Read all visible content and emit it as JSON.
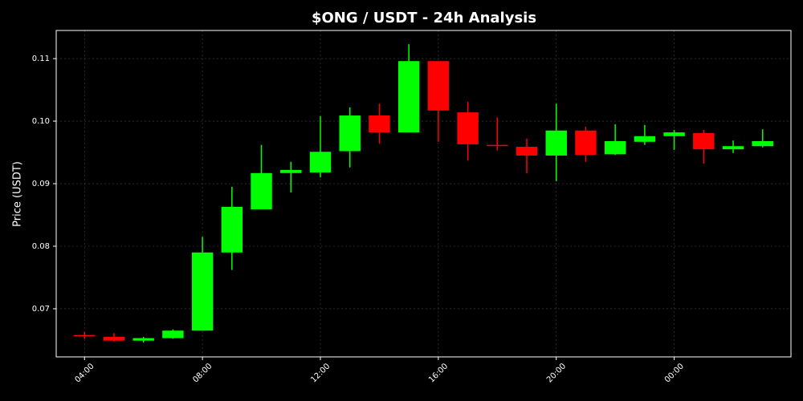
{
  "chart_data": {
    "type": "candlestick",
    "title": "$ONG / USDT - 24h Analysis",
    "y_label": "Price (USDT)",
    "categories": [
      "04:00",
      null,
      null,
      null,
      "08:00",
      null,
      null,
      null,
      "12:00",
      null,
      null,
      null,
      "16:00",
      null,
      null,
      null,
      "20:00",
      null,
      null,
      null,
      "00:00",
      null,
      null,
      null
    ],
    "open": [
      0.0658,
      0.0655,
      0.0649,
      0.0653,
      0.0665,
      0.079,
      0.0859,
      0.0917,
      0.0918,
      0.0952,
      0.1009,
      0.0982,
      0.1096,
      0.1014,
      0.0962,
      0.0959,
      0.0945,
      0.0985,
      0.0947,
      0.0967,
      0.0976,
      0.0981,
      0.0955,
      0.096
    ],
    "high": [
      0.0663,
      0.0661,
      0.0655,
      0.0667,
      0.0815,
      0.0895,
      0.0962,
      0.0935,
      0.1008,
      0.1022,
      0.1028,
      0.1123,
      0.1096,
      0.1031,
      0.1006,
      0.0972,
      0.1028,
      0.0991,
      0.0995,
      0.0994,
      0.0986,
      0.0986,
      0.0969,
      0.0987
    ],
    "low": [
      0.0652,
      0.0648,
      0.0646,
      0.0652,
      0.0665,
      0.0762,
      0.0859,
      0.0886,
      0.091,
      0.0926,
      0.0964,
      0.0982,
      0.0967,
      0.0937,
      0.0953,
      0.0917,
      0.0904,
      0.0935,
      0.0946,
      0.0962,
      0.0954,
      0.0932,
      0.0949,
      0.0958
    ],
    "close": [
      0.0657,
      0.0649,
      0.0653,
      0.0665,
      0.079,
      0.0863,
      0.0917,
      0.0922,
      0.0951,
      0.1009,
      0.0982,
      0.1096,
      0.1017,
      0.0963,
      0.0961,
      0.0945,
      0.0985,
      0.0946,
      0.0968,
      0.0976,
      0.0982,
      0.0955,
      0.096,
      0.0968
    ],
    "up_color": "#00ff00",
    "down_color": "#ff0000",
    "ylim": [
      0.0623,
      0.1145
    ],
    "yticks": [
      0.07,
      0.08,
      0.09,
      {
        "value": 0.1,
        "label": "0.10"
      },
      0.11
    ],
    "grid": true
  }
}
